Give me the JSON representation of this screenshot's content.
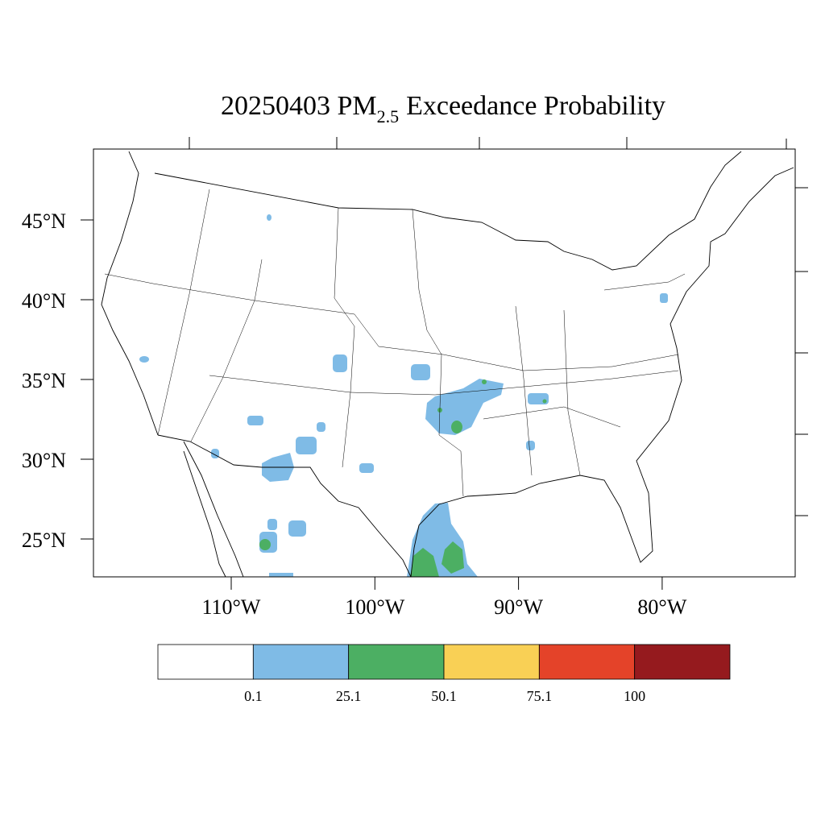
{
  "title": {
    "text": "20250403 PM",
    "sub": "2.5",
    "rest": "Exceedance Probability"
  },
  "map": {
    "lat_labels": [
      {
        "value": 45,
        "label": "45°N"
      },
      {
        "value": 40,
        "label": "40°N"
      },
      {
        "value": 35,
        "label": "35°N"
      },
      {
        "value": 30,
        "label": "30°N"
      },
      {
        "value": 25,
        "label": "25°N"
      }
    ],
    "lon_labels": [
      {
        "value": -110,
        "label": "110°W"
      },
      {
        "value": -100,
        "label": "100°W"
      },
      {
        "value": -90,
        "label": "90°W"
      },
      {
        "value": -80,
        "label": "80°W"
      }
    ]
  },
  "colorbar": {
    "levels": [
      0.1,
      25.1,
      50.1,
      75.1,
      100
    ],
    "colors": [
      "#ffffff",
      "#7fbbe6",
      "#4caf63",
      "#f9d055",
      "#e44329",
      "#951a1e"
    ]
  }
}
